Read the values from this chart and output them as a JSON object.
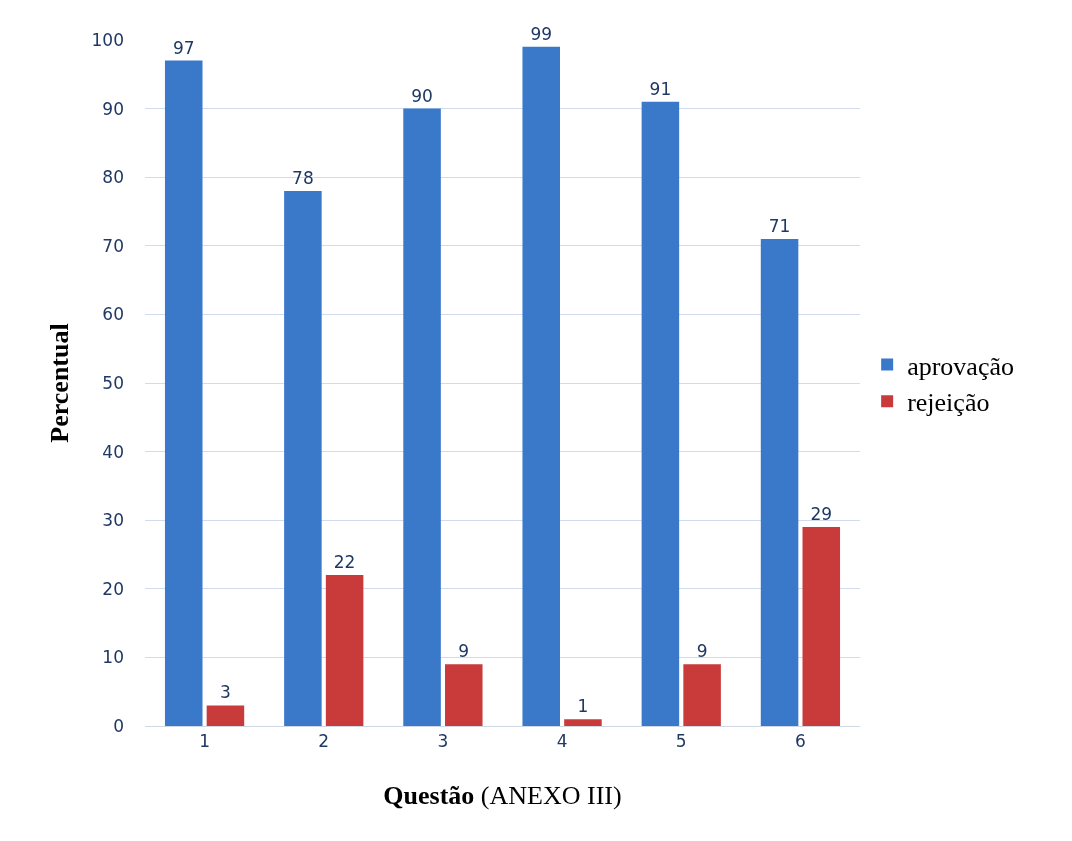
{
  "chart_data": {
    "type": "bar",
    "xlabel": "Questão (ANEXO III)",
    "ylabel": "Percentual",
    "categories": [
      "1",
      "2",
      "3",
      "4",
      "5",
      "6"
    ],
    "series": [
      {
        "name": "aprovação",
        "color": "#3a78c9",
        "values": [
          97,
          78,
          90,
          99,
          91,
          71
        ]
      },
      {
        "name": "rejeição",
        "color": "#c93a3a",
        "values": [
          3,
          22,
          9,
          1,
          9,
          29
        ]
      }
    ],
    "ylim": [
      0,
      100
    ],
    "yticks": [
      0,
      10,
      20,
      30,
      40,
      50,
      60,
      70,
      80,
      90,
      100
    ],
    "grid": "y",
    "legend": "right",
    "data_labels": true
  }
}
